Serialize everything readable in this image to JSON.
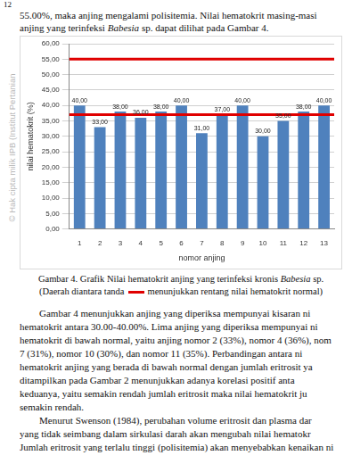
{
  "page": {
    "page_number": "12",
    "watermark": "© Hak cipta milik IPB (Institut Pertanian",
    "intro": [
      [
        "55.00%, maka anjing mengalami polisitemia. Nilai hematokrit masing-masi"
      ],
      [
        "anjing yang terinfeksi ",
        {
          "i": "Babesia"
        },
        " sp. dapat dilihat pada Gambar 4."
      ]
    ],
    "caption": [
      [
        "Gambar 4. Grafik Nilai hematokrit anjing yang terinfeksi kronis ",
        {
          "i": "Babesia"
        },
        " sp."
      ],
      [
        "(Daerah diantara tanda",
        "menunjukkan rentang nilai hematokrit normal)"
      ]
    ],
    "paragraph": [
      [
        "Gambar 4 menunjukkan anjing yang diperiksa mempunyai kisaran ni"
      ],
      [
        "hematokrit antara 30.00-40.00%. Lima anjing yang diperiksa mempunyai ni"
      ],
      [
        "hematokrit di bawah normal, yaitu anjing nomor 2 (33%), nomor 4 (36%), nom"
      ],
      [
        "7 (31%), nomor 10 (30%), dan nomor 11 (35%). Perbandingan antara ni"
      ],
      [
        "hematokrit anjing yang berada di bawah normal dengan jumlah eritrosit ya"
      ],
      [
        "ditampilkan pada Gambar 2 menunjukkan adanya korelasi positif anta"
      ],
      [
        "keduanya, yaitu semakin rendah jumlah eritrosit maka nilai hematokrit ju"
      ],
      [
        "semakin rendah."
      ],
      [
        "Menurut Swenson (1984), perubahan volume eritrosit dan plasma dar"
      ],
      [
        "yang tidak seimbang dalam sirkulasi darah akan mengubah nilai hematokr"
      ],
      [
        "Jumlah eritrosit yang terlalu tinggi (polisitemia) akan menyebabkan kenaikan ni"
      ]
    ]
  },
  "chart_data": {
    "type": "bar",
    "x_label": "nomor anjing",
    "y_label": "nilai hematokrit (%)",
    "categories": [
      "1",
      "2",
      "3",
      "4",
      "5",
      "6",
      "7",
      "8",
      "9",
      "10",
      "11",
      "12",
      "13"
    ],
    "values": [
      40,
      33,
      38,
      36,
      38,
      40,
      31,
      37,
      40,
      30,
      35,
      38,
      40
    ],
    "value_labels": [
      "40,00",
      "33,00",
      "38,00",
      "36,00",
      "38,00",
      "40,00",
      "31,00",
      "37,00",
      "40,00",
      "30,00",
      "35,00",
      "38,00",
      "40,00"
    ],
    "data_labels": true,
    "color": "#4f81bd",
    "ylim": [
      0,
      60
    ],
    "yticks": [
      {
        "value": 0,
        "label": "0,00"
      },
      {
        "value": 5,
        "label": "5,00"
      },
      {
        "value": 10,
        "label": "10,00"
      },
      {
        "value": 15,
        "label": "15,00"
      },
      {
        "value": 20,
        "label": "20,00"
      },
      {
        "value": 25,
        "label": "25,00"
      },
      {
        "value": 30,
        "label": "30,00"
      },
      {
        "value": 35,
        "label": "35,00"
      },
      {
        "value": 40,
        "label": "40,00"
      },
      {
        "value": 45,
        "label": "45,00"
      },
      {
        "value": 50,
        "label": "50,00"
      },
      {
        "value": 55,
        "label": "55,00"
      },
      {
        "value": 60,
        "label": "60,00"
      }
    ],
    "grid": true,
    "normal_range": {
      "values": [
        37,
        55
      ],
      "color": "#e00000"
    }
  }
}
